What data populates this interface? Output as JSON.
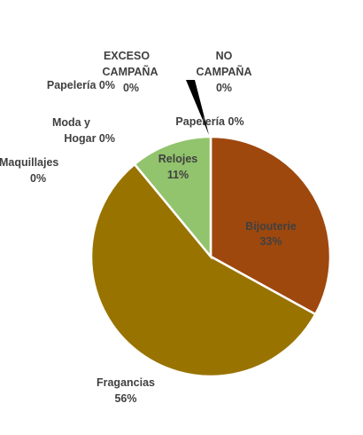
{
  "chart_data": {
    "type": "pie",
    "title": "",
    "legend": "none",
    "slices": [
      {
        "label": "Bijouterie",
        "value": 33,
        "value_label": "33%",
        "color": "#9E480E"
      },
      {
        "label": "Fragancias",
        "value": 56,
        "value_label": "56%",
        "color": "#997300"
      },
      {
        "label": "Maquillajes",
        "value": 0,
        "value_label": "0%",
        "color": "#636363"
      },
      {
        "label": "Moda y Hogar",
        "value": 0,
        "value_label": "0%",
        "color": "#264478"
      },
      {
        "label": "Papelería",
        "value": 0,
        "value_label": "0%",
        "color": "#43682B"
      },
      {
        "label": "EXCESO CAMPAÑA",
        "value": 0,
        "value_label": "0%",
        "color": "#698ED0"
      },
      {
        "label": "Relojes",
        "value": 11,
        "value_label": "11%",
        "color": "#92C36D"
      },
      {
        "label": "NO CAMPAÑA",
        "value": 0,
        "value_label": "0%",
        "color": "#F1975A"
      },
      {
        "label": "Papelería",
        "value": 0,
        "value_label": "0%",
        "color": "#B7B7B7"
      }
    ]
  }
}
